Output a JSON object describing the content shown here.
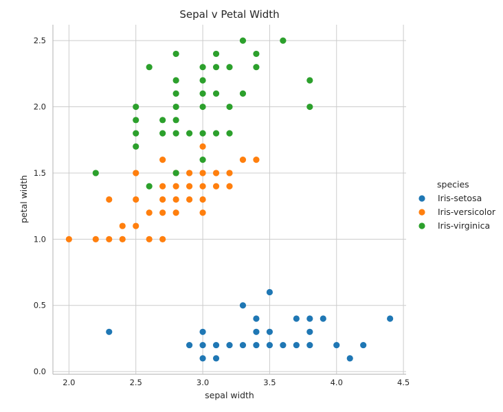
{
  "chart_data": {
    "type": "scatter",
    "title": "Sepal v Petal Width",
    "xlabel": "sepal width",
    "ylabel": "petal width",
    "xlim": [
      1.88,
      4.52
    ],
    "ylim": [
      -0.02,
      2.62
    ],
    "xticks": [
      2.0,
      2.5,
      3.0,
      3.5,
      4.0,
      4.5
    ],
    "xtick_labels": [
      "2.0",
      "2.5",
      "3.0",
      "3.5",
      "4.0",
      "4.5"
    ],
    "yticks": [
      0.0,
      0.5,
      1.0,
      1.5,
      2.0,
      2.5
    ],
    "ytick_labels": [
      "0.0",
      "0.5",
      "1.0",
      "1.5",
      "2.0",
      "2.5"
    ],
    "grid": true,
    "legend": {
      "title": "species",
      "placement": "right"
    },
    "series": [
      {
        "name": "Iris-setosa",
        "color": "#1f77b4",
        "points": [
          [
            2.3,
            0.3
          ],
          [
            2.9,
            0.2
          ],
          [
            3.0,
            0.1
          ],
          [
            3.0,
            0.2
          ],
          [
            3.0,
            0.3
          ],
          [
            3.1,
            0.1
          ],
          [
            3.1,
            0.2
          ],
          [
            3.2,
            0.2
          ],
          [
            3.3,
            0.2
          ],
          [
            3.3,
            0.5
          ],
          [
            3.4,
            0.2
          ],
          [
            3.4,
            0.3
          ],
          [
            3.4,
            0.4
          ],
          [
            3.5,
            0.2
          ],
          [
            3.5,
            0.3
          ],
          [
            3.5,
            0.6
          ],
          [
            3.6,
            0.2
          ],
          [
            3.7,
            0.2
          ],
          [
            3.7,
            0.4
          ],
          [
            3.8,
            0.2
          ],
          [
            3.8,
            0.3
          ],
          [
            3.8,
            0.4
          ],
          [
            3.9,
            0.4
          ],
          [
            4.0,
            0.2
          ],
          [
            4.1,
            0.1
          ],
          [
            4.2,
            0.2
          ],
          [
            4.4,
            0.4
          ]
        ]
      },
      {
        "name": "Iris-versicolor",
        "color": "#ff7f0e",
        "points": [
          [
            2.0,
            1.0
          ],
          [
            2.2,
            1.0
          ],
          [
            2.3,
            1.0
          ],
          [
            2.3,
            1.3
          ],
          [
            2.4,
            1.0
          ],
          [
            2.4,
            1.1
          ],
          [
            2.5,
            1.1
          ],
          [
            2.5,
            1.3
          ],
          [
            2.5,
            1.5
          ],
          [
            2.6,
            1.0
          ],
          [
            2.6,
            1.2
          ],
          [
            2.7,
            1.0
          ],
          [
            2.7,
            1.2
          ],
          [
            2.7,
            1.3
          ],
          [
            2.7,
            1.4
          ],
          [
            2.7,
            1.6
          ],
          [
            2.8,
            1.2
          ],
          [
            2.8,
            1.3
          ],
          [
            2.8,
            1.4
          ],
          [
            2.8,
            1.5
          ],
          [
            2.9,
            1.3
          ],
          [
            2.9,
            1.4
          ],
          [
            2.9,
            1.5
          ],
          [
            3.0,
            1.2
          ],
          [
            3.0,
            1.3
          ],
          [
            3.0,
            1.4
          ],
          [
            3.0,
            1.5
          ],
          [
            3.0,
            1.7
          ],
          [
            3.1,
            1.4
          ],
          [
            3.1,
            1.5
          ],
          [
            3.2,
            1.4
          ],
          [
            3.2,
            1.5
          ],
          [
            3.3,
            1.6
          ],
          [
            3.4,
            1.6
          ]
        ]
      },
      {
        "name": "Iris-virginica",
        "color": "#2ca02c",
        "points": [
          [
            2.2,
            1.5
          ],
          [
            2.5,
            1.7
          ],
          [
            2.5,
            1.8
          ],
          [
            2.5,
            1.9
          ],
          [
            2.5,
            2.0
          ],
          [
            2.6,
            1.4
          ],
          [
            2.6,
            2.3
          ],
          [
            2.7,
            1.8
          ],
          [
            2.7,
            1.9
          ],
          [
            2.8,
            1.5
          ],
          [
            2.8,
            1.8
          ],
          [
            2.8,
            1.9
          ],
          [
            2.8,
            2.0
          ],
          [
            2.8,
            2.1
          ],
          [
            2.8,
            2.2
          ],
          [
            2.8,
            2.4
          ],
          [
            2.9,
            1.8
          ],
          [
            3.0,
            1.6
          ],
          [
            3.0,
            1.8
          ],
          [
            3.0,
            2.0
          ],
          [
            3.0,
            2.1
          ],
          [
            3.0,
            2.2
          ],
          [
            3.0,
            2.3
          ],
          [
            3.1,
            1.8
          ],
          [
            3.1,
            2.1
          ],
          [
            3.1,
            2.3
          ],
          [
            3.1,
            2.4
          ],
          [
            3.2,
            1.8
          ],
          [
            3.2,
            2.0
          ],
          [
            3.2,
            2.3
          ],
          [
            3.3,
            2.1
          ],
          [
            3.3,
            2.5
          ],
          [
            3.4,
            2.3
          ],
          [
            3.4,
            2.4
          ],
          [
            3.6,
            2.5
          ],
          [
            3.8,
            2.0
          ],
          [
            3.8,
            2.2
          ]
        ]
      }
    ]
  }
}
